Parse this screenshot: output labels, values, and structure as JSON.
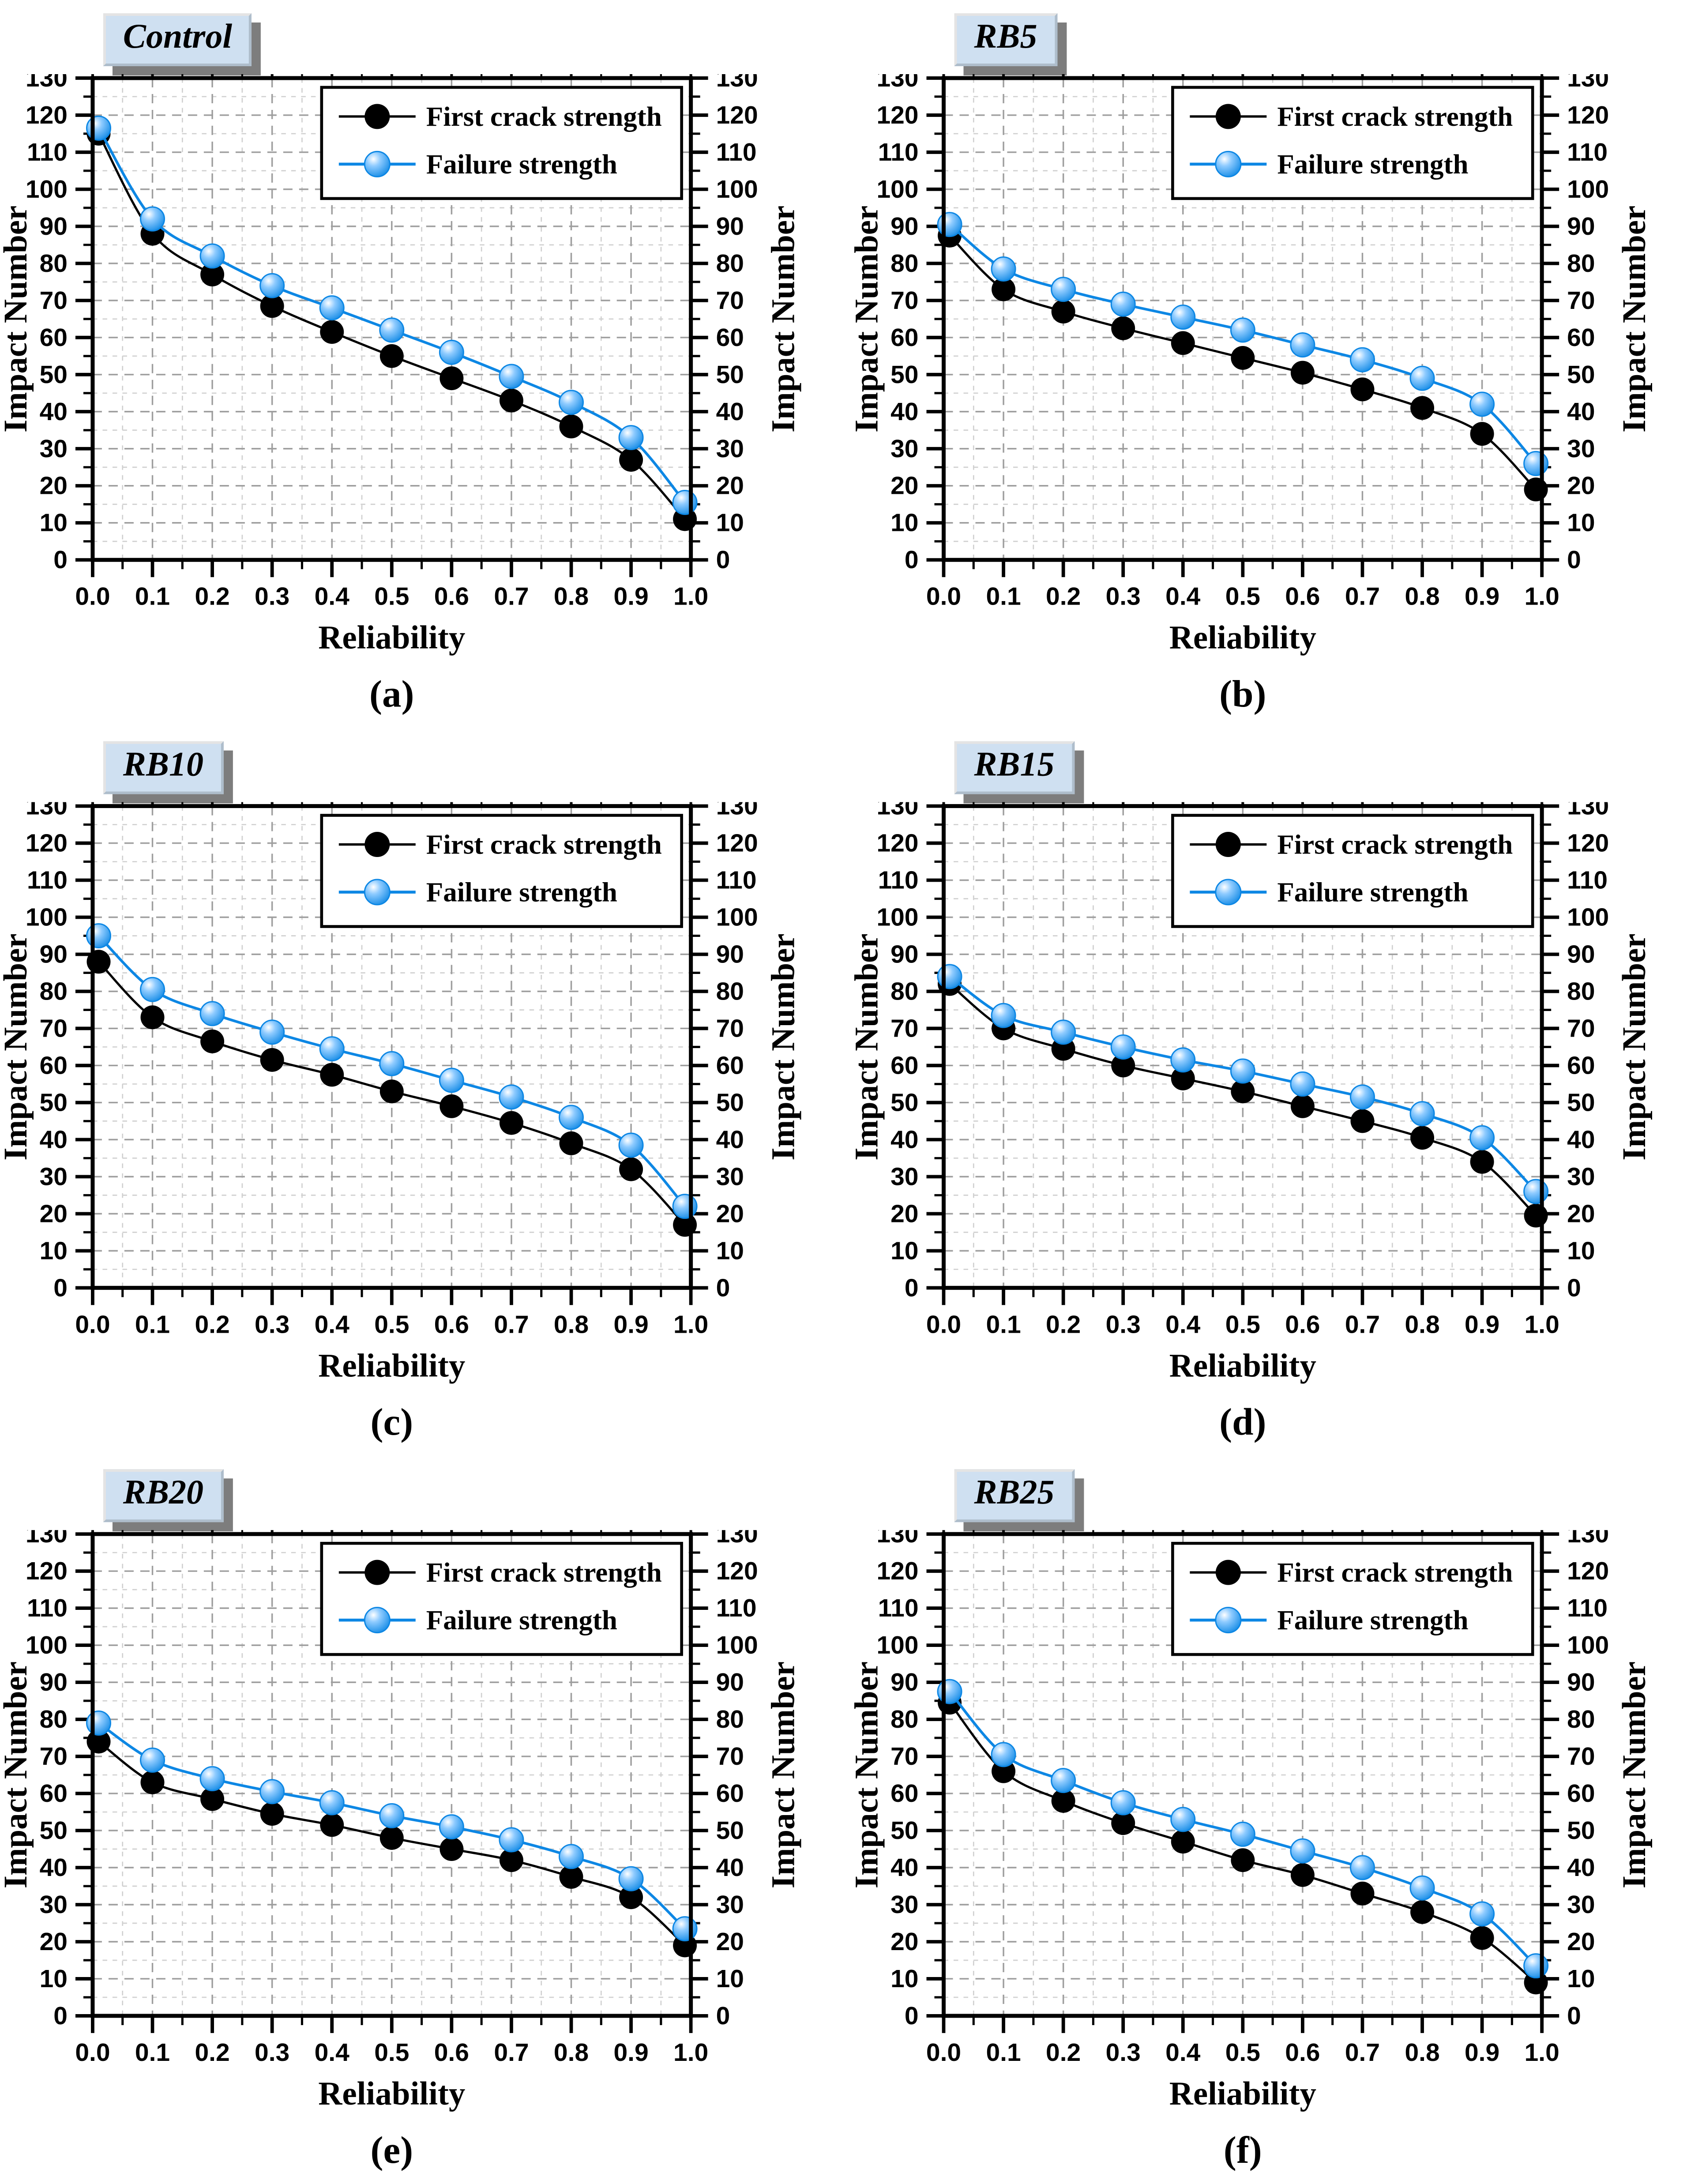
{
  "page": {
    "background": "#ffffff"
  },
  "colors": {
    "first_crack": "#000000",
    "failure": "#0d87e4",
    "failure_sphere_mid": "#8ecbff",
    "failure_sphere_light": "#ffffff",
    "grid_major": "#9e9e9e",
    "grid_minor": "#d0d0d0",
    "frame": "#000000",
    "legend_bg": "#ffffff",
    "label_box_bg": "#cfe0f1",
    "label_box_shadow": "#7d7d7d"
  },
  "chart_data": [
    {
      "type": "line",
      "panel_label": "Control",
      "caption": "(a)",
      "xlabel": "Reliability",
      "ylabel_left": "Impact Number",
      "ylabel_right": "Impact Number",
      "xlim": [
        0,
        1
      ],
      "ylim": [
        0,
        130
      ],
      "grid": true,
      "legend_position": "top-right",
      "xticks": [
        "0.0",
        "0.1",
        "0.2",
        "0.3",
        "0.4",
        "0.5",
        "0.6",
        "0.7",
        "0.8",
        "0.9",
        "1.0"
      ],
      "yticks": [
        0,
        10,
        20,
        30,
        40,
        50,
        60,
        70,
        80,
        90,
        100,
        110,
        120,
        130
      ],
      "x": [
        0.01,
        0.1,
        0.2,
        0.3,
        0.4,
        0.5,
        0.6,
        0.7,
        0.8,
        0.9,
        0.99
      ],
      "series": [
        {
          "key": "first_crack",
          "name": "First crack strength",
          "values": [
            115,
            88,
            77,
            68.5,
            61.5,
            55,
            49,
            43,
            36,
            27,
            11
          ]
        },
        {
          "key": "failure",
          "name": "Failure strength",
          "values": [
            116.5,
            92,
            82,
            74,
            68,
            62,
            56,
            49.5,
            42.5,
            33,
            15.5
          ]
        }
      ]
    },
    {
      "type": "line",
      "panel_label": "RB5",
      "caption": "(b)",
      "xlabel": "Reliability",
      "ylabel_left": "Impact Number",
      "ylabel_right": "Impact Number",
      "xlim": [
        0,
        1
      ],
      "ylim": [
        0,
        130
      ],
      "grid": true,
      "legend_position": "top-right",
      "xticks": [
        "0.0",
        "0.1",
        "0.2",
        "0.3",
        "0.4",
        "0.5",
        "0.6",
        "0.7",
        "0.8",
        "0.9",
        "1.0"
      ],
      "yticks": [
        0,
        10,
        20,
        30,
        40,
        50,
        60,
        70,
        80,
        90,
        100,
        110,
        120,
        130
      ],
      "x": [
        0.01,
        0.1,
        0.2,
        0.3,
        0.4,
        0.5,
        0.6,
        0.7,
        0.8,
        0.9,
        0.99
      ],
      "series": [
        {
          "key": "first_crack",
          "name": "First crack strength",
          "values": [
            87.5,
            73,
            67,
            62.5,
            58.5,
            54.5,
            50.5,
            46,
            41,
            34,
            19
          ]
        },
        {
          "key": "failure",
          "name": "Failure strength",
          "values": [
            90.5,
            78.5,
            73,
            69,
            65.5,
            62,
            58,
            54,
            49,
            42,
            26
          ]
        }
      ]
    },
    {
      "type": "line",
      "panel_label": "RB10",
      "caption": "(c)",
      "xlabel": "Reliability",
      "ylabel_left": "Impact Number",
      "ylabel_right": "Impact Number",
      "xlim": [
        0,
        1
      ],
      "ylim": [
        0,
        130
      ],
      "grid": true,
      "legend_position": "top-right",
      "xticks": [
        "0.0",
        "0.1",
        "0.2",
        "0.3",
        "0.4",
        "0.5",
        "0.6",
        "0.7",
        "0.8",
        "0.9",
        "1.0"
      ],
      "yticks": [
        0,
        10,
        20,
        30,
        40,
        50,
        60,
        70,
        80,
        90,
        100,
        110,
        120,
        130
      ],
      "x": [
        0.01,
        0.1,
        0.2,
        0.3,
        0.4,
        0.5,
        0.6,
        0.7,
        0.8,
        0.9,
        0.99
      ],
      "series": [
        {
          "key": "first_crack",
          "name": "First crack strength",
          "values": [
            88,
            73,
            66.5,
            61.5,
            57.5,
            53,
            49,
            44.5,
            39,
            32,
            17
          ]
        },
        {
          "key": "failure",
          "name": "Failure strength",
          "values": [
            95,
            80.5,
            74,
            69,
            64.5,
            60.5,
            56,
            51.5,
            46,
            38.5,
            22
          ]
        }
      ]
    },
    {
      "type": "line",
      "panel_label": "RB15",
      "caption": "(d)",
      "xlabel": "Reliability",
      "ylabel_left": "Impact Number",
      "ylabel_right": "Impact Number",
      "xlim": [
        0,
        1
      ],
      "ylim": [
        0,
        130
      ],
      "grid": true,
      "legend_position": "top-right",
      "xticks": [
        "0.0",
        "0.1",
        "0.2",
        "0.3",
        "0.4",
        "0.5",
        "0.6",
        "0.7",
        "0.8",
        "0.9",
        "1.0"
      ],
      "yticks": [
        0,
        10,
        20,
        30,
        40,
        50,
        60,
        70,
        80,
        90,
        100,
        110,
        120,
        130
      ],
      "x": [
        0.01,
        0.1,
        0.2,
        0.3,
        0.4,
        0.5,
        0.6,
        0.7,
        0.8,
        0.9,
        0.99
      ],
      "series": [
        {
          "key": "first_crack",
          "name": "First crack strength",
          "values": [
            82,
            70,
            64.5,
            60,
            56.5,
            53,
            49,
            45,
            40.5,
            34,
            19.5
          ]
        },
        {
          "key": "failure",
          "name": "Failure strength",
          "values": [
            84,
            73.5,
            69,
            65,
            61.5,
            58.5,
            55,
            51.5,
            47,
            40.5,
            26
          ]
        }
      ]
    },
    {
      "type": "line",
      "panel_label": "RB20",
      "caption": "(e)",
      "xlabel": "Reliability",
      "ylabel_left": "Impact Number",
      "ylabel_right": "Impact Number",
      "xlim": [
        0,
        1
      ],
      "ylim": [
        0,
        130
      ],
      "grid": true,
      "legend_position": "top-right",
      "xticks": [
        "0.0",
        "0.1",
        "0.2",
        "0.3",
        "0.4",
        "0.5",
        "0.6",
        "0.7",
        "0.8",
        "0.9",
        "1.0"
      ],
      "yticks": [
        0,
        10,
        20,
        30,
        40,
        50,
        60,
        70,
        80,
        90,
        100,
        110,
        120,
        130
      ],
      "x": [
        0.01,
        0.1,
        0.2,
        0.3,
        0.4,
        0.5,
        0.6,
        0.7,
        0.8,
        0.9,
        0.99
      ],
      "series": [
        {
          "key": "first_crack",
          "name": "First crack strength",
          "values": [
            74,
            63,
            58.5,
            54.5,
            51.5,
            48,
            45,
            42,
            37.5,
            32,
            19
          ]
        },
        {
          "key": "failure",
          "name": "Failure strength",
          "values": [
            79,
            69,
            64,
            60.5,
            57.5,
            54,
            51,
            47.5,
            43,
            37,
            23.5
          ]
        }
      ]
    },
    {
      "type": "line",
      "panel_label": "RB25",
      "caption": "(f)",
      "xlabel": "Reliability",
      "ylabel_left": "Impact Number",
      "ylabel_right": "Impact Number",
      "xlim": [
        0,
        1
      ],
      "ylim": [
        0,
        130
      ],
      "grid": true,
      "legend_position": "top-right",
      "xticks": [
        "0.0",
        "0.1",
        "0.2",
        "0.3",
        "0.4",
        "0.5",
        "0.6",
        "0.7",
        "0.8",
        "0.9",
        "1.0"
      ],
      "yticks": [
        0,
        10,
        20,
        30,
        40,
        50,
        60,
        70,
        80,
        90,
        100,
        110,
        120,
        130
      ],
      "x": [
        0.01,
        0.1,
        0.2,
        0.3,
        0.4,
        0.5,
        0.6,
        0.7,
        0.8,
        0.9,
        0.99
      ],
      "series": [
        {
          "key": "first_crack",
          "name": "First crack strength",
          "values": [
            84.5,
            66,
            58,
            52,
            47,
            42,
            38,
            33,
            28,
            21,
            9
          ]
        },
        {
          "key": "failure",
          "name": "Failure strength",
          "values": [
            87.5,
            70.5,
            63.5,
            57.5,
            53,
            49,
            44.5,
            40,
            34.5,
            27.5,
            13.5
          ]
        }
      ]
    }
  ]
}
